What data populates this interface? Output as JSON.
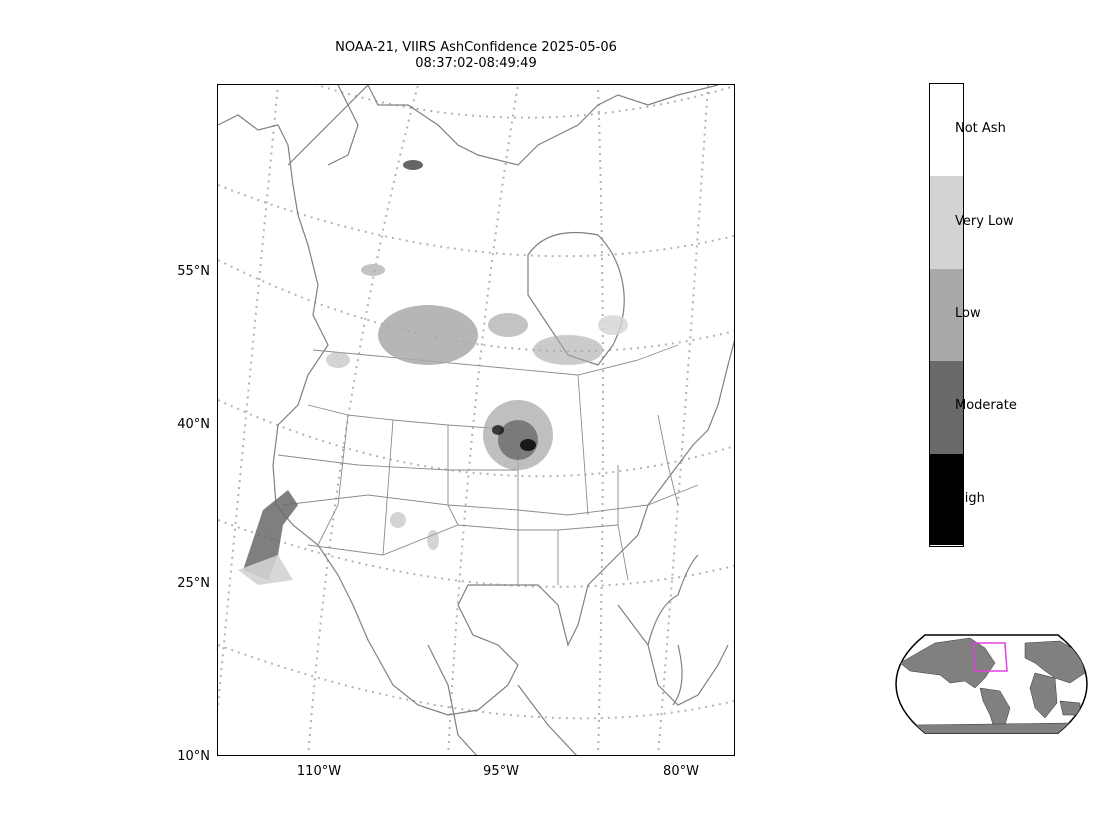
{
  "title": {
    "line1": "NOAA-21, VIIRS AshConfidence 2025-05-06",
    "line2": "08:37:02-08:49:49"
  },
  "map": {
    "lat_labels": [
      "55°N",
      "40°N",
      "25°N",
      "10°N"
    ],
    "lon_labels": [
      "110°W",
      "95°W",
      "80°W"
    ],
    "coastline_color": "#808080",
    "graticule_color": "#b3b3b3"
  },
  "colorbar": {
    "categories": [
      {
        "label": "Not Ash",
        "color": "#ffffff"
      },
      {
        "label": "Very Low",
        "color": "#d3d3d3"
      },
      {
        "label": "Low",
        "color": "#a9a9a9"
      },
      {
        "label": "Moderate",
        "color": "#696969"
      },
      {
        "label": "High",
        "color": "#000000"
      }
    ]
  },
  "globe_inset": {
    "land_color": "#808080",
    "highlight_color": "#e040e0"
  }
}
